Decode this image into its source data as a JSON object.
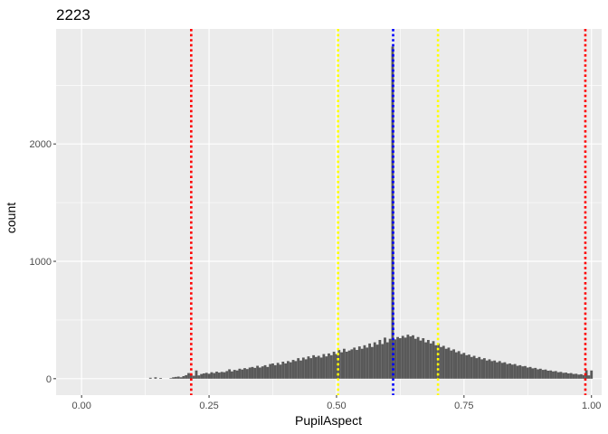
{
  "chart_data": {
    "type": "bar",
    "title": "2223",
    "xlabel": "PupilAspect",
    "ylabel": "count",
    "xlim": [
      -0.05,
      1.02
    ],
    "ylim": [
      -140,
      2980
    ],
    "x_ticks": [
      {
        "value": 0.0,
        "label": "0.00"
      },
      {
        "value": 0.25,
        "label": "0.25"
      },
      {
        "value": 0.5,
        "label": "0.50"
      },
      {
        "value": 0.75,
        "label": "0.75"
      },
      {
        "value": 1.0,
        "label": "1.00"
      }
    ],
    "y_ticks": [
      {
        "value": 0,
        "label": "0"
      },
      {
        "value": 1000,
        "label": "1000"
      },
      {
        "value": 2000,
        "label": "2000"
      }
    ],
    "grid": true,
    "bin_width": 0.005,
    "bins": [
      [
        0.135,
        8
      ],
      [
        0.145,
        12
      ],
      [
        0.155,
        6
      ],
      [
        0.175,
        5
      ],
      [
        0.18,
        12
      ],
      [
        0.185,
        15
      ],
      [
        0.19,
        18
      ],
      [
        0.195,
        12
      ],
      [
        0.2,
        22
      ],
      [
        0.205,
        30
      ],
      [
        0.21,
        48
      ],
      [
        0.215,
        35
      ],
      [
        0.22,
        25
      ],
      [
        0.225,
        70
      ],
      [
        0.23,
        28
      ],
      [
        0.235,
        40
      ],
      [
        0.24,
        45
      ],
      [
        0.245,
        50
      ],
      [
        0.25,
        42
      ],
      [
        0.255,
        55
      ],
      [
        0.26,
        48
      ],
      [
        0.265,
        60
      ],
      [
        0.27,
        52
      ],
      [
        0.275,
        58
      ],
      [
        0.28,
        55
      ],
      [
        0.285,
        65
      ],
      [
        0.29,
        80
      ],
      [
        0.295,
        62
      ],
      [
        0.3,
        75
      ],
      [
        0.305,
        70
      ],
      [
        0.31,
        85
      ],
      [
        0.315,
        78
      ],
      [
        0.32,
        90
      ],
      [
        0.325,
        82
      ],
      [
        0.33,
        95
      ],
      [
        0.335,
        100
      ],
      [
        0.34,
        92
      ],
      [
        0.345,
        110
      ],
      [
        0.35,
        95
      ],
      [
        0.355,
        105
      ],
      [
        0.36,
        115
      ],
      [
        0.365,
        100
      ],
      [
        0.37,
        125
      ],
      [
        0.375,
        130
      ],
      [
        0.38,
        115
      ],
      [
        0.385,
        135
      ],
      [
        0.39,
        120
      ],
      [
        0.395,
        145
      ],
      [
        0.4,
        130
      ],
      [
        0.405,
        150
      ],
      [
        0.41,
        140
      ],
      [
        0.415,
        160
      ],
      [
        0.42,
        150
      ],
      [
        0.425,
        175
      ],
      [
        0.43,
        155
      ],
      [
        0.435,
        180
      ],
      [
        0.44,
        165
      ],
      [
        0.445,
        190
      ],
      [
        0.45,
        175
      ],
      [
        0.455,
        200
      ],
      [
        0.46,
        185
      ],
      [
        0.465,
        195
      ],
      [
        0.47,
        180
      ],
      [
        0.475,
        210
      ],
      [
        0.48,
        190
      ],
      [
        0.485,
        215
      ],
      [
        0.49,
        200
      ],
      [
        0.495,
        230
      ],
      [
        0.5,
        210
      ],
      [
        0.505,
        245
      ],
      [
        0.51,
        225
      ],
      [
        0.515,
        255
      ],
      [
        0.52,
        230
      ],
      [
        0.525,
        240
      ],
      [
        0.53,
        250
      ],
      [
        0.535,
        265
      ],
      [
        0.54,
        245
      ],
      [
        0.545,
        275
      ],
      [
        0.55,
        255
      ],
      [
        0.555,
        285
      ],
      [
        0.56,
        265
      ],
      [
        0.565,
        300
      ],
      [
        0.57,
        270
      ],
      [
        0.575,
        310
      ],
      [
        0.58,
        290
      ],
      [
        0.585,
        330
      ],
      [
        0.59,
        295
      ],
      [
        0.595,
        350
      ],
      [
        0.6,
        310
      ],
      [
        0.605,
        340
      ],
      [
        0.61,
        2830
      ],
      [
        0.615,
        335
      ],
      [
        0.62,
        355
      ],
      [
        0.625,
        345
      ],
      [
        0.63,
        365
      ],
      [
        0.635,
        350
      ],
      [
        0.64,
        375
      ],
      [
        0.645,
        360
      ],
      [
        0.65,
        370
      ],
      [
        0.655,
        340
      ],
      [
        0.66,
        355
      ],
      [
        0.665,
        325
      ],
      [
        0.67,
        345
      ],
      [
        0.675,
        310
      ],
      [
        0.68,
        330
      ],
      [
        0.685,
        300
      ],
      [
        0.69,
        320
      ],
      [
        0.695,
        285
      ],
      [
        0.7,
        300
      ],
      [
        0.705,
        270
      ],
      [
        0.71,
        280
      ],
      [
        0.715,
        255
      ],
      [
        0.72,
        265
      ],
      [
        0.725,
        240
      ],
      [
        0.73,
        250
      ],
      [
        0.735,
        225
      ],
      [
        0.74,
        235
      ],
      [
        0.745,
        210
      ],
      [
        0.75,
        220
      ],
      [
        0.755,
        200
      ],
      [
        0.76,
        205
      ],
      [
        0.765,
        185
      ],
      [
        0.77,
        195
      ],
      [
        0.775,
        175
      ],
      [
        0.78,
        185
      ],
      [
        0.785,
        165
      ],
      [
        0.79,
        175
      ],
      [
        0.795,
        155
      ],
      [
        0.8,
        165
      ],
      [
        0.805,
        150
      ],
      [
        0.81,
        155
      ],
      [
        0.815,
        140
      ],
      [
        0.82,
        150
      ],
      [
        0.825,
        135
      ],
      [
        0.83,
        140
      ],
      [
        0.835,
        125
      ],
      [
        0.84,
        130
      ],
      [
        0.845,
        120
      ],
      [
        0.85,
        125
      ],
      [
        0.855,
        110
      ],
      [
        0.86,
        115
      ],
      [
        0.865,
        105
      ],
      [
        0.87,
        108
      ],
      [
        0.875,
        95
      ],
      [
        0.88,
        100
      ],
      [
        0.885,
        88
      ],
      [
        0.89,
        92
      ],
      [
        0.895,
        80
      ],
      [
        0.9,
        85
      ],
      [
        0.905,
        75
      ],
      [
        0.91,
        78
      ],
      [
        0.915,
        68
      ],
      [
        0.92,
        70
      ],
      [
        0.925,
        62
      ],
      [
        0.93,
        65
      ],
      [
        0.935,
        55
      ],
      [
        0.94,
        58
      ],
      [
        0.945,
        50
      ],
      [
        0.95,
        52
      ],
      [
        0.955,
        45
      ],
      [
        0.96,
        48
      ],
      [
        0.965,
        40
      ],
      [
        0.97,
        42
      ],
      [
        0.975,
        35
      ],
      [
        0.98,
        38
      ],
      [
        0.985,
        30
      ],
      [
        0.99,
        72
      ],
      [
        0.995,
        28
      ],
      [
        1.0,
        70
      ]
    ],
    "bar_color": "#595959",
    "panel_background": "#ebebeb",
    "grid_color": "#ffffff",
    "vlines": [
      {
        "x": 0.215,
        "color": "#ff0000"
      },
      {
        "x": 0.503,
        "color": "#ffff00"
      },
      {
        "x": 0.611,
        "color": "#0000ff"
      },
      {
        "x": 0.699,
        "color": "#ffff00"
      },
      {
        "x": 0.988,
        "color": "#ff0000"
      }
    ]
  }
}
